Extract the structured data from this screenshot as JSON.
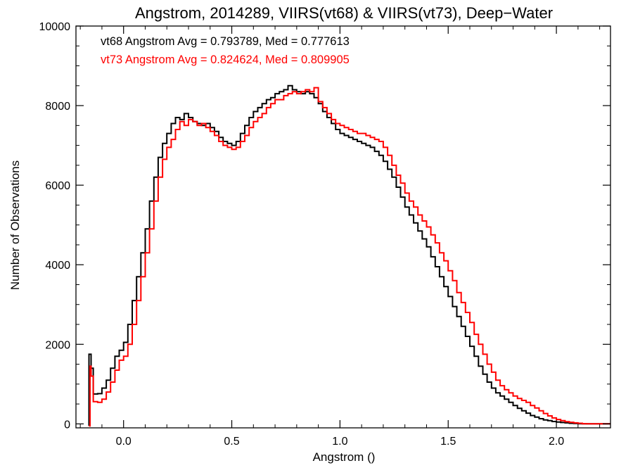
{
  "chart_data": {
    "type": "line",
    "title": "Angstrom, 2014289, VIIRS(vt68) & VIIRS(vt73), Deep−Water",
    "xlabel": "Angstrom ()",
    "ylabel": "Number of Observations",
    "xlim": [
      -0.22,
      2.25
    ],
    "ylim": [
      -100,
      10000
    ],
    "x_ticks": [
      0.0,
      0.5,
      1.0,
      1.5,
      2.0
    ],
    "x_tick_labels": [
      "0.0",
      "0.5",
      "1.0",
      "1.5",
      "2.0"
    ],
    "y_ticks": [
      0,
      2000,
      4000,
      6000,
      8000,
      10000
    ],
    "y_tick_labels": [
      "0",
      "2000",
      "4000",
      "6000",
      "8000",
      "10000"
    ],
    "grid": false,
    "legend": "none",
    "annotations": [
      {
        "text": "vt68 Angstrom Avg = 0.793789, Med = 0.777613",
        "color": "#000000"
      },
      {
        "text": "vt73 Angstrom Avg = 0.824624, Med = 0.809905",
        "color": "#ff0000"
      }
    ],
    "series": [
      {
        "color": "#000000",
        "points": [
          [
            -0.16,
            1750
          ],
          [
            -0.15,
            1400
          ],
          [
            -0.14,
            750
          ],
          [
            -0.12,
            760
          ],
          [
            -0.1,
            900
          ],
          [
            -0.08,
            1100
          ],
          [
            -0.06,
            1400
          ],
          [
            -0.04,
            1700
          ],
          [
            -0.02,
            1850
          ],
          [
            0.0,
            2050
          ],
          [
            0.02,
            2500
          ],
          [
            0.04,
            3100
          ],
          [
            0.06,
            3700
          ],
          [
            0.08,
            4300
          ],
          [
            0.1,
            4900
          ],
          [
            0.12,
            5600
          ],
          [
            0.14,
            6200
          ],
          [
            0.16,
            6700
          ],
          [
            0.18,
            7050
          ],
          [
            0.2,
            7300
          ],
          [
            0.22,
            7550
          ],
          [
            0.24,
            7700
          ],
          [
            0.26,
            7650
          ],
          [
            0.28,
            7800
          ],
          [
            0.3,
            7700
          ],
          [
            0.32,
            7600
          ],
          [
            0.34,
            7550
          ],
          [
            0.36,
            7500
          ],
          [
            0.38,
            7550
          ],
          [
            0.4,
            7450
          ],
          [
            0.42,
            7350
          ],
          [
            0.44,
            7200
          ],
          [
            0.46,
            7100
          ],
          [
            0.48,
            7050
          ],
          [
            0.5,
            7000
          ],
          [
            0.52,
            7100
          ],
          [
            0.54,
            7300
          ],
          [
            0.56,
            7500
          ],
          [
            0.58,
            7700
          ],
          [
            0.6,
            7850
          ],
          [
            0.62,
            7950
          ],
          [
            0.64,
            8050
          ],
          [
            0.66,
            8150
          ],
          [
            0.68,
            8200
          ],
          [
            0.7,
            8300
          ],
          [
            0.72,
            8350
          ],
          [
            0.74,
            8400
          ],
          [
            0.76,
            8500
          ],
          [
            0.78,
            8400
          ],
          [
            0.8,
            8350
          ],
          [
            0.82,
            8300
          ],
          [
            0.84,
            8350
          ],
          [
            0.86,
            8300
          ],
          [
            0.88,
            8200
          ],
          [
            0.9,
            8050
          ],
          [
            0.92,
            7850
          ],
          [
            0.94,
            7700
          ],
          [
            0.96,
            7550
          ],
          [
            0.98,
            7400
          ],
          [
            1.0,
            7300
          ],
          [
            1.02,
            7250
          ],
          [
            1.04,
            7200
          ],
          [
            1.06,
            7150
          ],
          [
            1.08,
            7100
          ],
          [
            1.1,
            7050
          ],
          [
            1.12,
            7000
          ],
          [
            1.14,
            6950
          ],
          [
            1.16,
            6850
          ],
          [
            1.18,
            6750
          ],
          [
            1.2,
            6600
          ],
          [
            1.22,
            6400
          ],
          [
            1.24,
            6200
          ],
          [
            1.26,
            5950
          ],
          [
            1.28,
            5700
          ],
          [
            1.3,
            5450
          ],
          [
            1.32,
            5250
          ],
          [
            1.34,
            5050
          ],
          [
            1.36,
            4850
          ],
          [
            1.38,
            4650
          ],
          [
            1.4,
            4450
          ],
          [
            1.42,
            4200
          ],
          [
            1.44,
            3950
          ],
          [
            1.46,
            3700
          ],
          [
            1.48,
            3450
          ],
          [
            1.5,
            3200
          ],
          [
            1.52,
            2950
          ],
          [
            1.54,
            2700
          ],
          [
            1.56,
            2450
          ],
          [
            1.58,
            2200
          ],
          [
            1.6,
            1950
          ],
          [
            1.62,
            1700
          ],
          [
            1.64,
            1450
          ],
          [
            1.66,
            1250
          ],
          [
            1.68,
            1050
          ],
          [
            1.7,
            900
          ],
          [
            1.72,
            780
          ],
          [
            1.74,
            700
          ],
          [
            1.76,
            620
          ],
          [
            1.78,
            540
          ],
          [
            1.8,
            460
          ],
          [
            1.82,
            390
          ],
          [
            1.84,
            330
          ],
          [
            1.86,
            270
          ],
          [
            1.88,
            210
          ],
          [
            1.9,
            170
          ],
          [
            1.92,
            130
          ],
          [
            1.94,
            100
          ],
          [
            1.96,
            80
          ],
          [
            1.98,
            60
          ],
          [
            2.0,
            45
          ],
          [
            2.02,
            35
          ],
          [
            2.04,
            25
          ],
          [
            2.06,
            15
          ],
          [
            2.08,
            10
          ],
          [
            2.1,
            5
          ],
          [
            2.12,
            0
          ]
        ]
      },
      {
        "color": "#ff0000",
        "points": [
          [
            -0.16,
            -50
          ],
          [
            -0.155,
            1450
          ],
          [
            -0.15,
            1200
          ],
          [
            -0.14,
            560
          ],
          [
            -0.12,
            540
          ],
          [
            -0.1,
            620
          ],
          [
            -0.08,
            800
          ],
          [
            -0.06,
            1050
          ],
          [
            -0.04,
            1350
          ],
          [
            -0.02,
            1600
          ],
          [
            0.0,
            1700
          ],
          [
            0.02,
            2000
          ],
          [
            0.04,
            2500
          ],
          [
            0.06,
            3100
          ],
          [
            0.08,
            3700
          ],
          [
            0.1,
            4300
          ],
          [
            0.12,
            4900
          ],
          [
            0.14,
            5600
          ],
          [
            0.16,
            6200
          ],
          [
            0.18,
            6650
          ],
          [
            0.2,
            6950
          ],
          [
            0.22,
            7150
          ],
          [
            0.24,
            7400
          ],
          [
            0.26,
            7600
          ],
          [
            0.28,
            7500
          ],
          [
            0.3,
            7650
          ],
          [
            0.32,
            7600
          ],
          [
            0.34,
            7500
          ],
          [
            0.36,
            7550
          ],
          [
            0.38,
            7450
          ],
          [
            0.4,
            7350
          ],
          [
            0.42,
            7250
          ],
          [
            0.44,
            7100
          ],
          [
            0.46,
            7000
          ],
          [
            0.48,
            6950
          ],
          [
            0.5,
            6900
          ],
          [
            0.52,
            6950
          ],
          [
            0.54,
            7100
          ],
          [
            0.56,
            7250
          ],
          [
            0.58,
            7450
          ],
          [
            0.6,
            7600
          ],
          [
            0.62,
            7700
          ],
          [
            0.64,
            7800
          ],
          [
            0.66,
            7950
          ],
          [
            0.68,
            8050
          ],
          [
            0.7,
            8150
          ],
          [
            0.72,
            8150
          ],
          [
            0.74,
            8250
          ],
          [
            0.76,
            8300
          ],
          [
            0.78,
            8350
          ],
          [
            0.8,
            8300
          ],
          [
            0.82,
            8350
          ],
          [
            0.84,
            8400
          ],
          [
            0.86,
            8350
          ],
          [
            0.88,
            8450
          ],
          [
            0.9,
            8100
          ],
          [
            0.92,
            7950
          ],
          [
            0.94,
            7800
          ],
          [
            0.96,
            7650
          ],
          [
            0.98,
            7550
          ],
          [
            1.0,
            7500
          ],
          [
            1.02,
            7450
          ],
          [
            1.04,
            7400
          ],
          [
            1.06,
            7350
          ],
          [
            1.08,
            7300
          ],
          [
            1.1,
            7300
          ],
          [
            1.12,
            7250
          ],
          [
            1.14,
            7200
          ],
          [
            1.16,
            7150
          ],
          [
            1.18,
            7100
          ],
          [
            1.2,
            6950
          ],
          [
            1.22,
            6750
          ],
          [
            1.24,
            6500
          ],
          [
            1.26,
            6250
          ],
          [
            1.28,
            6050
          ],
          [
            1.3,
            5800
          ],
          [
            1.32,
            5600
          ],
          [
            1.34,
            5450
          ],
          [
            1.36,
            5250
          ],
          [
            1.38,
            5100
          ],
          [
            1.4,
            4950
          ],
          [
            1.42,
            4750
          ],
          [
            1.44,
            4550
          ],
          [
            1.46,
            4300
          ],
          [
            1.48,
            4100
          ],
          [
            1.5,
            3850
          ],
          [
            1.52,
            3600
          ],
          [
            1.54,
            3300
          ],
          [
            1.56,
            3050
          ],
          [
            1.58,
            2800
          ],
          [
            1.6,
            2550
          ],
          [
            1.62,
            2250
          ],
          [
            1.64,
            2000
          ],
          [
            1.66,
            1750
          ],
          [
            1.68,
            1500
          ],
          [
            1.7,
            1300
          ],
          [
            1.72,
            1100
          ],
          [
            1.74,
            960
          ],
          [
            1.76,
            860
          ],
          [
            1.78,
            780
          ],
          [
            1.8,
            700
          ],
          [
            1.82,
            640
          ],
          [
            1.84,
            590
          ],
          [
            1.86,
            540
          ],
          [
            1.88,
            460
          ],
          [
            1.9,
            400
          ],
          [
            1.92,
            330
          ],
          [
            1.94,
            260
          ],
          [
            1.96,
            200
          ],
          [
            1.98,
            150
          ],
          [
            2.0,
            110
          ],
          [
            2.02,
            80
          ],
          [
            2.04,
            55
          ],
          [
            2.06,
            40
          ],
          [
            2.08,
            25
          ],
          [
            2.1,
            15
          ],
          [
            2.12,
            5
          ],
          [
            2.14,
            0
          ]
        ]
      }
    ]
  }
}
